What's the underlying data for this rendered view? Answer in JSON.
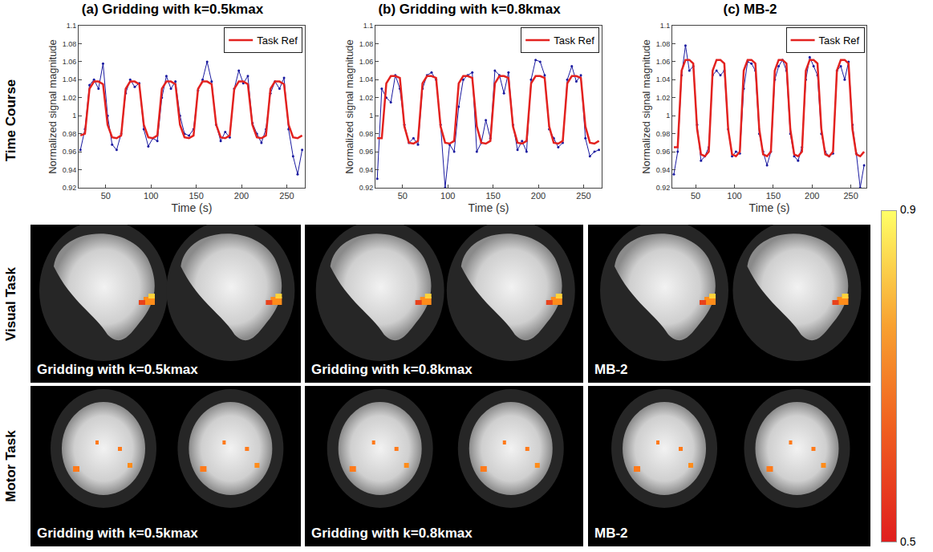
{
  "column_titles": [
    "(a) Gridding with k=0.5kmax",
    "(b) Gridding with k=0.8kmax",
    "(c) MB-2"
  ],
  "row_labels": [
    "Time Course",
    "Visual Task",
    "Motor Task"
  ],
  "chart_data": [
    {
      "type": "line",
      "x_label": "Time (s)",
      "y_label": "Normalized signal magnitude",
      "x": [
        22,
        27,
        32,
        37,
        42,
        47,
        52,
        57,
        62,
        67,
        72,
        77,
        82,
        87,
        92,
        97,
        102,
        107,
        112,
        117,
        122,
        127,
        132,
        137,
        142,
        147,
        152,
        157,
        162,
        167,
        172,
        177,
        182,
        187,
        192,
        197,
        202,
        207,
        212,
        217,
        222,
        227,
        232,
        237,
        242,
        247,
        252,
        257,
        262,
        267
      ],
      "xlim": [
        20,
        270
      ],
      "xticks": [
        50,
        100,
        150,
        200,
        250
      ],
      "ylim": [
        0.92,
        1.1
      ],
      "yticks": [
        0.92,
        0.94,
        0.96,
        0.98,
        1,
        1.02,
        1.04,
        1.06,
        1.08,
        1.1
      ],
      "legend": "upper right",
      "series": [
        {
          "color": "#1a1aa0",
          "marker": "dot",
          "values": [
            0.962,
            0.985,
            1.034,
            1.04,
            1.03,
            1.058,
            1.0,
            0.968,
            0.962,
            0.98,
            1.025,
            1.04,
            1.032,
            1.036,
            0.985,
            0.966,
            0.975,
            0.972,
            1.02,
            1.044,
            1.03,
            1.038,
            1.0,
            0.98,
            0.978,
            0.985,
            1.028,
            1.04,
            1.06,
            1.038,
            0.99,
            0.972,
            0.982,
            0.976,
            1.03,
            1.05,
            1.036,
            1.044,
            0.992,
            0.98,
            0.97,
            0.985,
            1.025,
            1.038,
            1.03,
            1.042,
            0.985,
            0.955,
            0.935,
            0.962
          ]
        },
        {
          "name": "Task Ref",
          "color": "#e3221f",
          "values": [
            0.978,
            0.98,
            1.03,
            1.038,
            1.038,
            1.035,
            0.99,
            0.976,
            0.975,
            0.978,
            1.03,
            1.038,
            1.038,
            1.035,
            0.99,
            0.976,
            0.975,
            0.978,
            1.03,
            1.038,
            1.038,
            1.035,
            0.99,
            0.976,
            0.975,
            0.978,
            1.03,
            1.038,
            1.038,
            1.035,
            0.99,
            0.976,
            0.975,
            0.978,
            1.03,
            1.038,
            1.038,
            1.035,
            0.99,
            0.976,
            0.975,
            0.978,
            1.03,
            1.038,
            1.038,
            1.035,
            0.99,
            0.976,
            0.975,
            0.978
          ]
        }
      ]
    },
    {
      "type": "line",
      "x_label": "Time (s)",
      "y_label": "Normalized signal magnitude",
      "x": [
        22,
        27,
        32,
        37,
        42,
        47,
        52,
        57,
        62,
        67,
        72,
        77,
        82,
        87,
        92,
        97,
        102,
        107,
        112,
        117,
        122,
        127,
        132,
        137,
        142,
        147,
        152,
        157,
        162,
        167,
        172,
        177,
        182,
        187,
        192,
        197,
        202,
        207,
        212,
        217,
        222,
        227,
        232,
        237,
        242,
        247,
        252,
        257,
        262,
        267
      ],
      "xlim": [
        20,
        270
      ],
      "xticks": [
        50,
        100,
        150,
        200,
        250
      ],
      "ylim": [
        0.92,
        1.1
      ],
      "yticks": [
        0.92,
        0.94,
        0.96,
        0.98,
        1,
        1.02,
        1.04,
        1.06,
        1.08,
        1.1
      ],
      "legend": "upper right",
      "series": [
        {
          "color": "#1a1aa0",
          "marker": "dot",
          "values": [
            0.93,
            1.03,
            1.02,
            1.015,
            1.045,
            1.03,
            0.99,
            0.97,
            0.975,
            0.968,
            1.03,
            1.045,
            1.048,
            1.04,
            0.99,
            0.92,
            0.968,
            0.96,
            1.01,
            1.04,
            1.045,
            1.048,
            0.96,
            0.97,
            0.995,
            0.975,
            1.05,
            1.045,
            1.025,
            1.048,
            0.99,
            0.962,
            0.972,
            0.96,
            1.04,
            1.062,
            1.06,
            1.045,
            0.985,
            0.975,
            0.965,
            0.97,
            1.04,
            1.055,
            1.038,
            1.045,
            0.975,
            0.955,
            0.96,
            0.962
          ]
        },
        {
          "name": "Task Ref",
          "color": "#e3221f",
          "values": [
            0.975,
            0.975,
            1.036,
            1.044,
            1.044,
            1.042,
            0.988,
            0.97,
            0.969,
            0.972,
            1.036,
            1.044,
            1.044,
            1.042,
            0.988,
            0.97,
            0.969,
            0.972,
            1.036,
            1.044,
            1.044,
            1.042,
            0.988,
            0.97,
            0.969,
            0.972,
            1.036,
            1.044,
            1.044,
            1.042,
            0.988,
            0.97,
            0.969,
            0.972,
            1.036,
            1.044,
            1.044,
            1.042,
            0.988,
            0.97,
            0.969,
            0.972,
            1.036,
            1.044,
            1.044,
            1.042,
            0.988,
            0.97,
            0.969,
            0.972
          ]
        }
      ]
    },
    {
      "type": "line",
      "x_label": "Time (s)",
      "y_label": "Normalized signal magnitude",
      "x": [
        22,
        27,
        32,
        37,
        42,
        47,
        52,
        57,
        62,
        67,
        72,
        77,
        82,
        87,
        92,
        97,
        102,
        107,
        112,
        117,
        122,
        127,
        132,
        137,
        142,
        147,
        152,
        157,
        162,
        167,
        172,
        177,
        182,
        187,
        192,
        197,
        202,
        207,
        212,
        217,
        222,
        227,
        232,
        237,
        242,
        247,
        252,
        257,
        262,
        267
      ],
      "xlim": [
        20,
        270
      ],
      "xticks": [
        50,
        100,
        150,
        200,
        250
      ],
      "ylim": [
        0.92,
        1.1
      ],
      "yticks": [
        0.92,
        0.94,
        0.96,
        0.98,
        1,
        1.02,
        1.04,
        1.06,
        1.08,
        1.1
      ],
      "legend": "upper right",
      "series": [
        {
          "color": "#1a1aa0",
          "marker": "dot",
          "values": [
            0.935,
            0.96,
            1.045,
            1.078,
            1.05,
            1.055,
            0.99,
            0.95,
            0.955,
            0.965,
            1.045,
            1.05,
            1.045,
            1.05,
            0.985,
            0.955,
            0.96,
            0.958,
            1.03,
            1.06,
            1.058,
            1.05,
            0.98,
            0.96,
            0.945,
            0.96,
            1.04,
            1.055,
            1.062,
            1.05,
            0.98,
            0.955,
            0.95,
            0.965,
            1.04,
            1.065,
            1.055,
            1.045,
            0.98,
            0.96,
            0.955,
            0.958,
            1.05,
            1.055,
            1.04,
            1.06,
            0.99,
            0.958,
            0.92,
            0.945
          ]
        },
        {
          "name": "Task Ref",
          "color": "#e3221f",
          "values": [
            0.965,
            0.965,
            1.05,
            1.062,
            1.062,
            1.058,
            0.985,
            0.957,
            0.955,
            0.96,
            1.05,
            1.062,
            1.062,
            1.058,
            0.985,
            0.957,
            0.955,
            0.96,
            1.05,
            1.062,
            1.062,
            1.058,
            0.985,
            0.957,
            0.955,
            0.96,
            1.05,
            1.062,
            1.062,
            1.058,
            0.985,
            0.957,
            0.955,
            0.96,
            1.05,
            1.062,
            1.062,
            1.058,
            0.985,
            0.957,
            0.955,
            0.96,
            1.05,
            1.062,
            1.062,
            1.058,
            0.985,
            0.957,
            0.955,
            0.96
          ]
        }
      ]
    }
  ],
  "image_panels": {
    "visual_task": [
      "Gridding with k=0.5kmax",
      "Gridding with k=0.8kmax",
      "MB-2"
    ],
    "motor_task": [
      "Gridding with k=0.5kmax",
      "Gridding with k=0.8kmax",
      "MB-2"
    ]
  },
  "colorbar": {
    "range": [
      0.5,
      0.9
    ],
    "ticks": [
      0.5,
      0.9
    ]
  }
}
